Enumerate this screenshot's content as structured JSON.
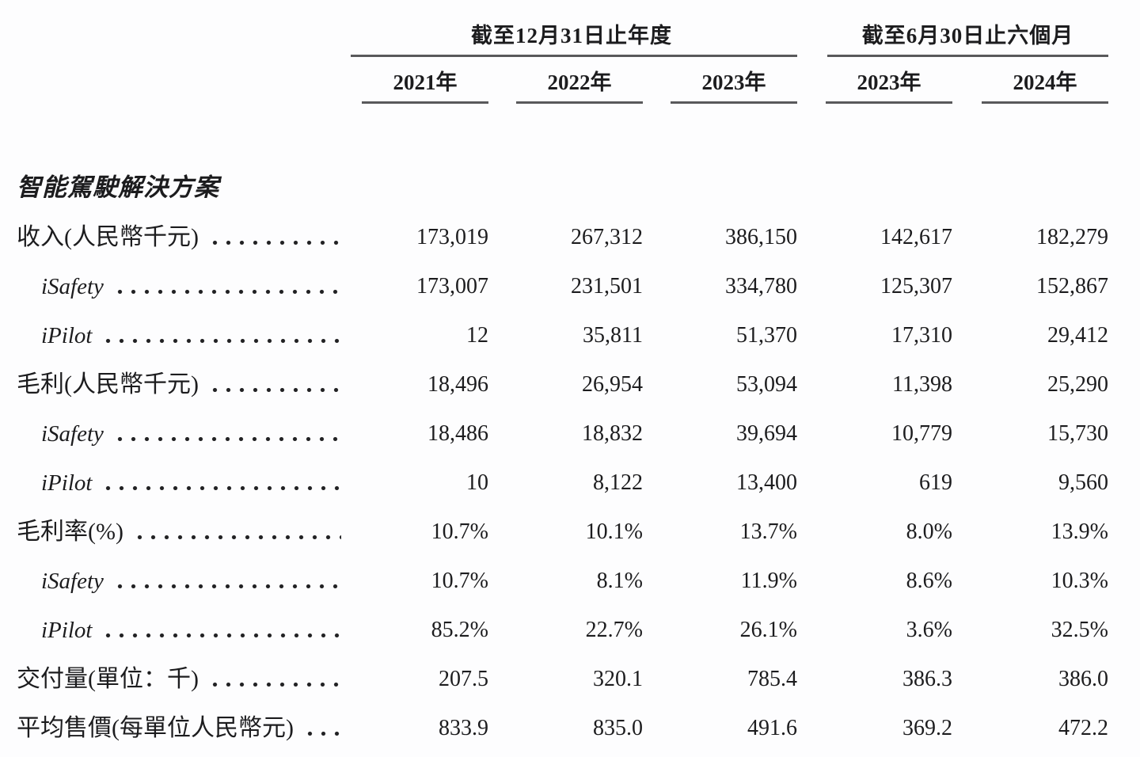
{
  "table": {
    "column_groups": [
      {
        "title": "截至12月31日止年度",
        "columns": [
          "2021年",
          "2022年",
          "2023年"
        ]
      },
      {
        "title": "截至6月30日止六個月",
        "columns": [
          "2023年",
          "2024年"
        ]
      }
    ],
    "section_header": "智能駕駛解決方案",
    "rows": [
      {
        "label": "收入(人民幣千元)",
        "indent": 0,
        "values": [
          "173,019",
          "267,312",
          "386,150",
          "142,617",
          "182,279"
        ]
      },
      {
        "label": "iSafety",
        "indent": 1,
        "values": [
          "173,007",
          "231,501",
          "334,780",
          "125,307",
          "152,867"
        ]
      },
      {
        "label": "iPilot",
        "indent": 1,
        "values": [
          "12",
          "35,811",
          "51,370",
          "17,310",
          "29,412"
        ]
      },
      {
        "label": "毛利(人民幣千元)",
        "indent": 0,
        "values": [
          "18,496",
          "26,954",
          "53,094",
          "11,398",
          "25,290"
        ]
      },
      {
        "label": "iSafety",
        "indent": 1,
        "values": [
          "18,486",
          "18,832",
          "39,694",
          "10,779",
          "15,730"
        ]
      },
      {
        "label": "iPilot",
        "indent": 1,
        "values": [
          "10",
          "8,122",
          "13,400",
          "619",
          "9,560"
        ]
      },
      {
        "label": "毛利率(%)",
        "indent": 0,
        "values": [
          "10.7%",
          "10.1%",
          "13.7%",
          "8.0%",
          "13.9%"
        ]
      },
      {
        "label": "iSafety",
        "indent": 1,
        "values": [
          "10.7%",
          "8.1%",
          "11.9%",
          "8.6%",
          "10.3%"
        ]
      },
      {
        "label": "iPilot",
        "indent": 1,
        "values": [
          "85.2%",
          "22.7%",
          "26.1%",
          "3.6%",
          "32.5%"
        ]
      },
      {
        "label": "交付量(單位：千)",
        "indent": 0,
        "values": [
          "207.5",
          "320.1",
          "785.4",
          "386.3",
          "386.0"
        ]
      },
      {
        "label": "平均售價(每單位人民幣元)",
        "indent": 0,
        "values": [
          "833.9",
          "835.0",
          "491.6",
          "369.2",
          "472.2"
        ]
      }
    ],
    "colors": {
      "text": "#1c1c1e",
      "rule": "#59595b",
      "background": "#fdfdfe"
    }
  }
}
